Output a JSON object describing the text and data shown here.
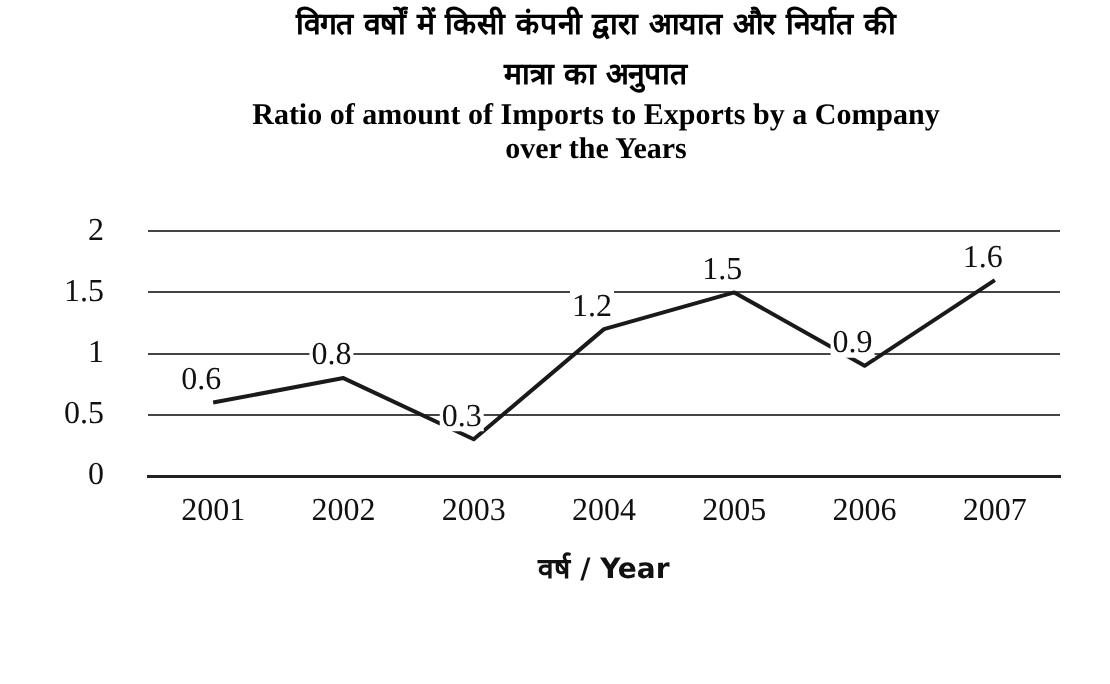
{
  "chart_data": {
    "type": "line",
    "title": "विगत वर्षों में किसी कंपनी द्वारा आयात और निर्यात की मात्रा का अनुपात",
    "subtitle": "Ratio of amount of Imports to Exports by a Company over the Years",
    "xlabel": "वर्ष / Year",
    "categories": [
      "2001",
      "2002",
      "2003",
      "2004",
      "2005",
      "2006",
      "2007"
    ],
    "series": [
      {
        "color": "#1a1a1a",
        "values": [
          0.6,
          0.8,
          0.3,
          1.2,
          1.5,
          0.9,
          1.6
        ]
      }
    ],
    "ylim": [
      0,
      2
    ],
    "yticks": [
      0,
      0.5,
      1,
      1.5,
      2
    ],
    "grid": "y",
    "data_labels": true,
    "marker": "none",
    "line_style": "solid",
    "legend": false
  }
}
